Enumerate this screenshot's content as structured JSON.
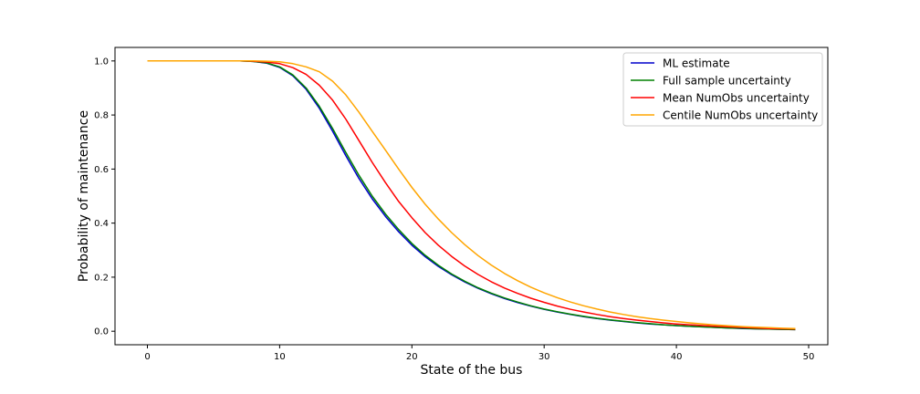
{
  "chart_data": {
    "type": "line",
    "xlabel": "State of the bus",
    "ylabel": "Probability of maintenance",
    "xlim": [
      -2.45,
      51.45
    ],
    "ylim": [
      -0.05,
      1.05
    ],
    "xticks": [
      0,
      10,
      20,
      30,
      40,
      50
    ],
    "yticks": [
      0.0,
      0.2,
      0.4,
      0.6,
      0.8,
      1.0
    ],
    "xtick_labels": [
      "0",
      "10",
      "20",
      "30",
      "40",
      "50"
    ],
    "ytick_labels": [
      "0.0",
      "0.2",
      "0.4",
      "0.6",
      "0.8",
      "1.0"
    ],
    "grid": false,
    "legend_position": "top-right",
    "x": [
      0,
      1,
      2,
      3,
      4,
      5,
      6,
      7,
      8,
      9,
      10,
      11,
      12,
      13,
      14,
      15,
      16,
      17,
      18,
      19,
      20,
      21,
      22,
      23,
      24,
      25,
      26,
      27,
      28,
      29,
      30,
      31,
      32,
      33,
      34,
      35,
      36,
      37,
      38,
      39,
      40,
      41,
      42,
      43,
      44,
      45,
      46,
      47,
      48,
      49
    ],
    "series": [
      {
        "name": "ML estimate",
        "color": "#0000cc",
        "values": [
          1.0,
          1.0,
          1.0,
          1.0,
          1.0,
          1.0,
          1.0,
          1.0,
          0.998,
          0.992,
          0.976,
          0.945,
          0.895,
          0.825,
          0.74,
          0.65,
          0.565,
          0.49,
          0.425,
          0.368,
          0.318,
          0.276,
          0.24,
          0.209,
          0.182,
          0.159,
          0.139,
          0.121,
          0.106,
          0.093,
          0.081,
          0.071,
          0.062,
          0.054,
          0.047,
          0.041,
          0.036,
          0.031,
          0.027,
          0.024,
          0.021,
          0.018,
          0.016,
          0.014,
          0.012,
          0.01,
          0.009,
          0.008,
          0.007,
          0.006
        ]
      },
      {
        "name": "Full sample uncertainty",
        "color": "#008000",
        "values": [
          1.0,
          1.0,
          1.0,
          1.0,
          1.0,
          1.0,
          1.0,
          1.0,
          0.998,
          0.993,
          0.978,
          0.948,
          0.9,
          0.832,
          0.75,
          0.662,
          0.577,
          0.5,
          0.434,
          0.376,
          0.325,
          0.281,
          0.244,
          0.212,
          0.185,
          0.161,
          0.141,
          0.123,
          0.108,
          0.094,
          0.082,
          0.072,
          0.063,
          0.055,
          0.048,
          0.042,
          0.037,
          0.032,
          0.028,
          0.024,
          0.021,
          0.018,
          0.016,
          0.014,
          0.012,
          0.011,
          0.009,
          0.008,
          0.007,
          0.006
        ]
      },
      {
        "name": "Mean NumObs uncertainty",
        "color": "#ff0000",
        "values": [
          1.0,
          1.0,
          1.0,
          1.0,
          1.0,
          1.0,
          1.0,
          1.0,
          0.999,
          0.996,
          0.99,
          0.975,
          0.95,
          0.91,
          0.855,
          0.785,
          0.705,
          0.625,
          0.55,
          0.48,
          0.42,
          0.365,
          0.318,
          0.277,
          0.241,
          0.21,
          0.183,
          0.16,
          0.14,
          0.122,
          0.107,
          0.093,
          0.081,
          0.071,
          0.062,
          0.054,
          0.047,
          0.041,
          0.036,
          0.031,
          0.027,
          0.024,
          0.021,
          0.018,
          0.016,
          0.014,
          0.012,
          0.01,
          0.009,
          0.008
        ]
      },
      {
        "name": "Centile NumObs uncertainty",
        "color": "#ffa500",
        "values": [
          1.0,
          1.0,
          1.0,
          1.0,
          1.0,
          1.0,
          1.0,
          1.0,
          1.0,
          0.999,
          0.997,
          0.99,
          0.978,
          0.96,
          0.925,
          0.875,
          0.81,
          0.74,
          0.67,
          0.6,
          0.532,
          0.47,
          0.415,
          0.365,
          0.32,
          0.28,
          0.245,
          0.214,
          0.187,
          0.163,
          0.142,
          0.124,
          0.108,
          0.094,
          0.082,
          0.071,
          0.062,
          0.054,
          0.047,
          0.041,
          0.036,
          0.031,
          0.027,
          0.023,
          0.02,
          0.017,
          0.015,
          0.013,
          0.011,
          0.01
        ]
      }
    ]
  }
}
